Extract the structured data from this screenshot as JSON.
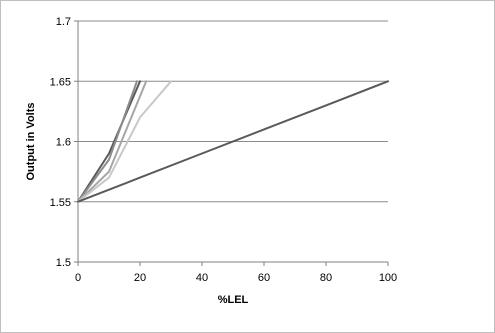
{
  "chart_data": {
    "type": "line",
    "title": "",
    "xlabel": "%LEL",
    "ylabel": "Output in Volts",
    "xlim": [
      0,
      100
    ],
    "ylim": [
      1.5,
      1.7
    ],
    "x_ticks": [
      "0",
      "20",
      "40",
      "60",
      "80",
      "100"
    ],
    "y_ticks": [
      "1.5",
      "1.55",
      "1.6",
      "1.65",
      "1.7"
    ],
    "grid": "horizontal",
    "legend": "none",
    "series": [
      {
        "color": "#5a5a5a",
        "points": [
          [
            0,
            1.55
          ],
          [
            10,
            1.59
          ],
          [
            20,
            1.65
          ]
        ]
      },
      {
        "color": "#8c8c8c",
        "points": [
          [
            0,
            1.55
          ],
          [
            10,
            1.585
          ],
          [
            19,
            1.65
          ]
        ]
      },
      {
        "color": "#a6a6a6",
        "points": [
          [
            0,
            1.55
          ],
          [
            10,
            1.575
          ],
          [
            22,
            1.65
          ]
        ]
      },
      {
        "color": "#c8c8c8",
        "points": [
          [
            0,
            1.55
          ],
          [
            10,
            1.57
          ],
          [
            20,
            1.62
          ],
          [
            30,
            1.65
          ]
        ]
      },
      {
        "color": "#5a5a5a",
        "points": [
          [
            0,
            1.55
          ],
          [
            20,
            1.57
          ],
          [
            40,
            1.59
          ],
          [
            60,
            1.61
          ],
          [
            80,
            1.63
          ],
          [
            100,
            1.65
          ]
        ]
      }
    ]
  }
}
